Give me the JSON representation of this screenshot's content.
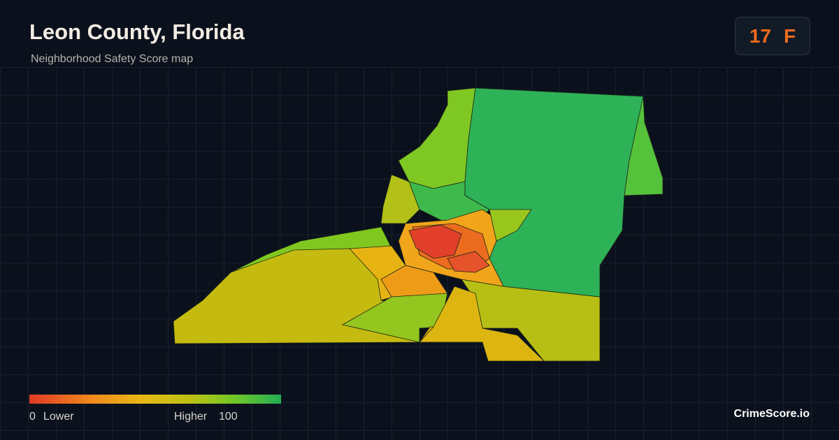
{
  "header": {
    "title": "Leon County, Florida",
    "subtitle": "Neighborhood Safety Score map"
  },
  "score": {
    "value": 17,
    "grade": "F"
  },
  "legend": {
    "min": 0,
    "min_label": "Lower",
    "max_label": "Higher",
    "max": 100
  },
  "brand": "CrimeScore.io"
}
